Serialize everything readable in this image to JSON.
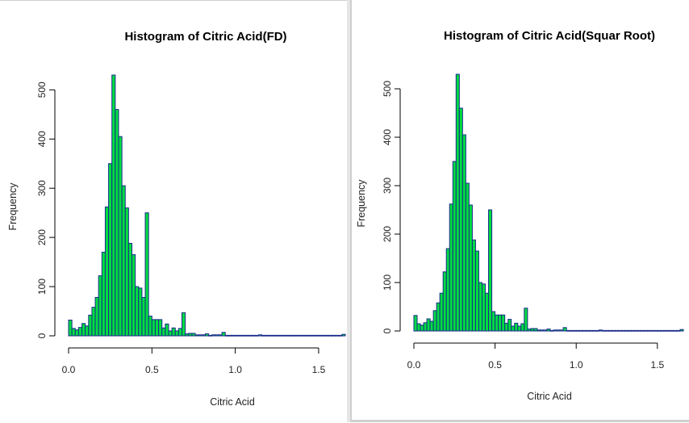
{
  "chart_data": [
    {
      "type": "bar",
      "title": "Histogram of Citric Acid(FD)",
      "xlabel": "Citric Acid",
      "ylabel": "Frequency",
      "xlim": [
        0,
        1.66
      ],
      "ylim": [
        0,
        530
      ],
      "bin_width": 0.02,
      "xticks": [
        0,
        0.5,
        1.0,
        1.5
      ],
      "xtick_labels": [
        "0.0",
        "0.5",
        "1.0",
        "1.5"
      ],
      "yticks": [
        0,
        100,
        200,
        300,
        400,
        500
      ],
      "ytick_labels": [
        "0",
        "100",
        "200",
        "300",
        "400",
        "500"
      ],
      "grid": false,
      "colors": {
        "bar_fill": "#00dd40",
        "bar_border": "#1a2a8c"
      },
      "values": [
        32,
        15,
        12,
        17,
        25,
        20,
        42,
        58,
        78,
        122,
        170,
        262,
        350,
        530,
        460,
        405,
        305,
        260,
        188,
        165,
        100,
        97,
        78,
        250,
        40,
        33,
        33,
        33,
        16,
        24,
        10,
        16,
        10,
        15,
        47,
        4,
        5,
        5,
        2,
        2,
        2,
        4,
        1,
        2,
        2,
        2,
        7,
        1,
        1,
        1,
        1,
        1,
        1,
        1,
        1,
        1,
        1,
        2,
        1,
        1,
        1,
        1,
        1,
        1,
        1,
        1,
        1,
        1,
        1,
        1,
        1,
        1,
        1,
        1,
        1,
        1,
        1,
        1,
        1,
        1,
        1,
        1,
        3
      ]
    },
    {
      "type": "bar",
      "title": "Histogram of Citric Acid(Squar Root)",
      "xlabel": "Citric Acid",
      "ylabel": "Frequency",
      "xlim": [
        0,
        1.66
      ],
      "ylim": [
        0,
        530
      ],
      "bin_width": 0.02,
      "xticks": [
        0,
        0.5,
        1.0,
        1.5
      ],
      "xtick_labels": [
        "0.0",
        "0.5",
        "1.0",
        "1.5"
      ],
      "yticks": [
        0,
        100,
        200,
        300,
        400,
        500
      ],
      "ytick_labels": [
        "0",
        "100",
        "200",
        "300",
        "400",
        "500"
      ],
      "grid": false,
      "colors": {
        "bar_fill": "#00dd40",
        "bar_border": "#1a2a8c"
      },
      "values": [
        32,
        15,
        12,
        17,
        25,
        20,
        42,
        58,
        78,
        122,
        170,
        262,
        350,
        530,
        460,
        405,
        305,
        260,
        188,
        165,
        100,
        97,
        78,
        250,
        40,
        33,
        33,
        33,
        16,
        24,
        10,
        16,
        10,
        15,
        47,
        4,
        5,
        5,
        2,
        2,
        2,
        4,
        1,
        2,
        2,
        2,
        7,
        1,
        1,
        1,
        1,
        1,
        1,
        1,
        1,
        1,
        1,
        2,
        1,
        1,
        1,
        1,
        1,
        1,
        1,
        1,
        1,
        1,
        1,
        1,
        1,
        1,
        1,
        1,
        1,
        1,
        1,
        1,
        1,
        1,
        1,
        1,
        3
      ]
    }
  ]
}
